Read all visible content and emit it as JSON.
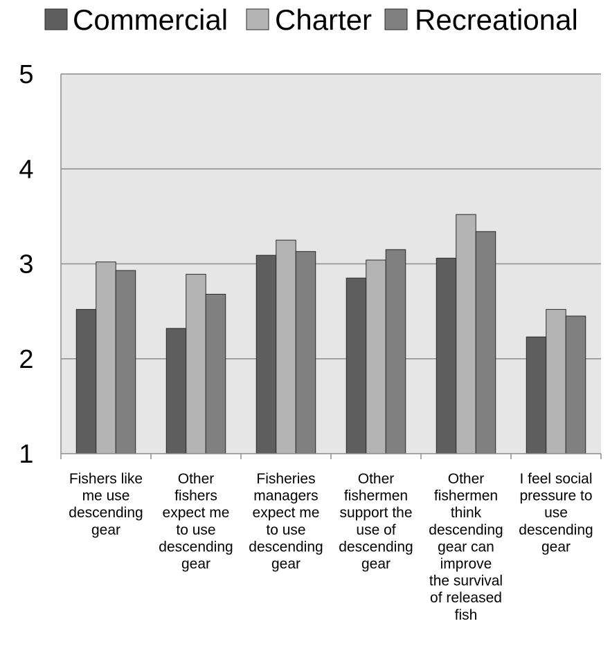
{
  "chart_data": {
    "type": "bar",
    "title": "",
    "xlabel": "",
    "ylabel": "",
    "ylim": [
      1,
      5
    ],
    "yticks": [
      1,
      2,
      3,
      4,
      5
    ],
    "grid": true,
    "legend_position": "top",
    "categories": [
      "Fishers like me use descending gear",
      "Other fishers expect me to use descending gear",
      "Fisheries managers expect me to use descending gear",
      "Other fishermen support the use of descending gear",
      "Other fishermen think descending gear can improve the survival of released fish",
      "I feel social pressure to use descending gear"
    ],
    "category_lines": [
      [
        "Fishers like",
        "me use",
        "descending",
        "gear"
      ],
      [
        "Other",
        "fishers",
        "expect me",
        "to use",
        "descending",
        "gear"
      ],
      [
        "Fisheries",
        "managers",
        "expect me",
        "to use",
        "descending",
        "gear"
      ],
      [
        "Other",
        "fishermen",
        "support the",
        "use of",
        "descending",
        "gear"
      ],
      [
        "Other",
        "fishermen",
        "think",
        "descending",
        "gear can",
        "improve",
        "the survival",
        "of released",
        "fish"
      ],
      [
        "I feel social",
        "pressure to",
        "use",
        "descending",
        "gear"
      ]
    ],
    "series": [
      {
        "name": "Commercial",
        "color": "#5e5e5e",
        "values": [
          2.52,
          2.32,
          3.09,
          2.85,
          3.06,
          2.23
        ]
      },
      {
        "name": "Charter",
        "color": "#b4b4b4",
        "values": [
          3.02,
          2.89,
          3.25,
          3.04,
          3.52,
          2.52
        ]
      },
      {
        "name": "Recreational",
        "color": "#808080",
        "values": [
          2.93,
          2.68,
          3.13,
          3.15,
          3.34,
          2.45
        ]
      }
    ],
    "colors": {
      "plot_background": "#e6e6e6",
      "gridline": "#8c8c8c",
      "axis": "#8c8c8c",
      "bar_stroke": "#2a2a2a"
    }
  }
}
